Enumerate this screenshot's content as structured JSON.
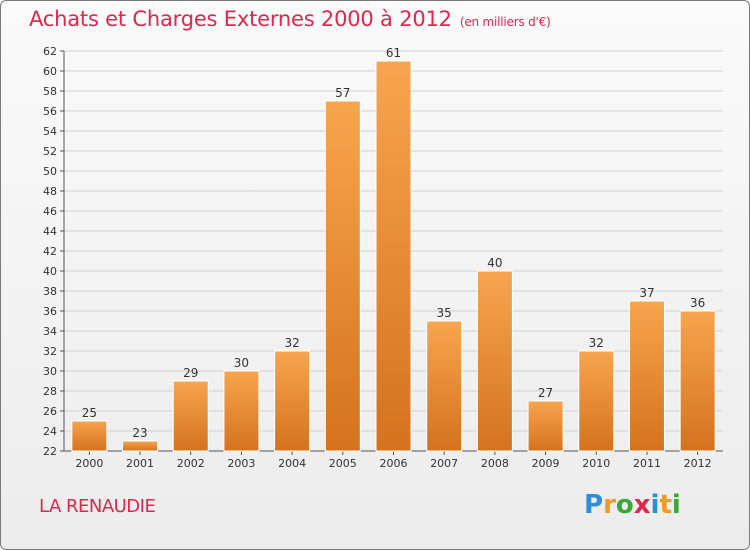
{
  "header": {
    "title": "Achats et Charges Externes 2000 à 2012",
    "subtitle": "(en milliers d'€)"
  },
  "footer": {
    "commune": "LA RENAUDIE",
    "logo": {
      "text": "Proxiti",
      "letters": [
        {
          "ch": "P",
          "color": "#2a8fd6"
        },
        {
          "ch": "r",
          "color": "#f39a1e"
        },
        {
          "ch": "o",
          "color": "#39a935"
        },
        {
          "ch": "x",
          "color": "#e0284a"
        },
        {
          "ch": "i",
          "color": "#2a8fd6"
        },
        {
          "ch": "t",
          "color": "#f39a1e"
        },
        {
          "ch": "i",
          "color": "#39a935"
        }
      ]
    }
  },
  "colors": {
    "bar_light": "#f7a54e",
    "bar_dark": "#d5721d",
    "title": "#e0284a",
    "grid": "#d0d0d0"
  },
  "chart_data": {
    "type": "bar",
    "title": "Achats et Charges Externes 2000 à 2012",
    "subtitle": "(en milliers d'€)",
    "categories": [
      "2000",
      "2001",
      "2002",
      "2003",
      "2004",
      "2005",
      "2006",
      "2007",
      "2008",
      "2009",
      "2010",
      "2011",
      "2012"
    ],
    "values": [
      25,
      23,
      29,
      30,
      32,
      57,
      61,
      35,
      40,
      27,
      32,
      37,
      36
    ],
    "ylim": [
      22,
      62
    ],
    "ytick_step": 2,
    "grid": true,
    "data_labels": true
  }
}
